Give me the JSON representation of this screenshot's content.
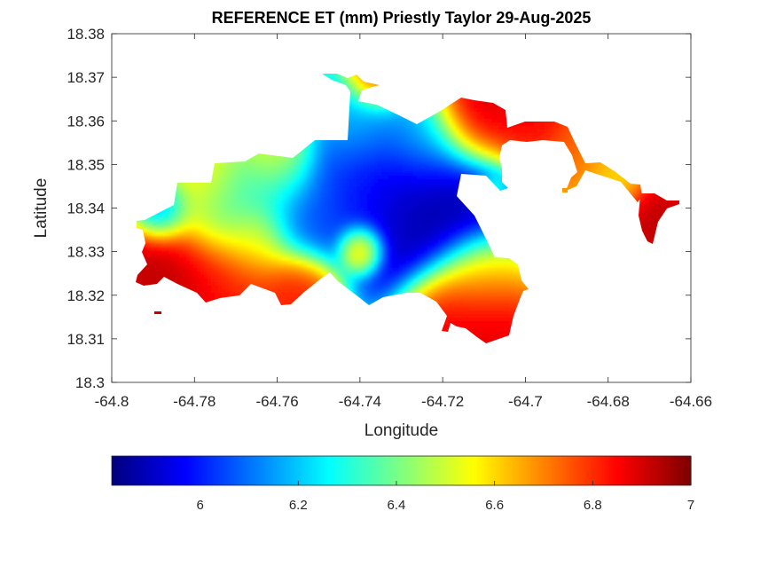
{
  "chart_data": {
    "type": "heatmap",
    "title": "REFERENCE ET (mm) Priestly Taylor 29-Aug-2025",
    "xlabel": "Longitude",
    "ylabel": "Latitude",
    "xlim": [
      -64.8,
      -64.66
    ],
    "ylim": [
      18.3,
      18.38
    ],
    "xticks": [
      -64.8,
      -64.78,
      -64.76,
      -64.74,
      -64.72,
      -64.7,
      -64.68,
      -64.66
    ],
    "yticks": [
      18.3,
      18.31,
      18.32,
      18.33,
      18.34,
      18.35,
      18.36,
      18.37,
      18.38
    ],
    "xtick_labels": [
      "-64.8",
      "-64.78",
      "-64.76",
      "-64.74",
      "-64.72",
      "-64.7",
      "-64.68",
      "-64.66"
    ],
    "ytick_labels": [
      "18.3",
      "18.31",
      "18.32",
      "18.33",
      "18.34",
      "18.35",
      "18.36",
      "18.37",
      "18.38"
    ],
    "grid": false,
    "colormap": "jet",
    "colorbar": {
      "orientation": "horizontal",
      "location": "below",
      "range": [
        5.82,
        7.0
      ],
      "ticks": [
        6,
        6.2,
        6.4,
        6.6,
        6.8,
        7
      ],
      "tick_labels": [
        "6",
        "6.2",
        "6.4",
        "6.6",
        "6.8",
        "7"
      ]
    },
    "field": {
      "background": 6.45,
      "hotspots": [
        {
          "lon": -64.7245,
          "lat": 18.3405,
          "value": 5.84,
          "radius": 0.011
        },
        {
          "lon": -64.7345,
          "lat": 18.35,
          "value": 5.92,
          "radius": 0.009
        },
        {
          "lon": -64.744,
          "lat": 18.344,
          "value": 6.05,
          "radius": 0.008
        },
        {
          "lon": -64.753,
          "lat": 18.3365,
          "value": 6.05,
          "radius": 0.006
        },
        {
          "lon": -64.788,
          "lat": 18.34,
          "value": 6.0,
          "radius": 0.004
        },
        {
          "lon": -64.772,
          "lat": 18.34,
          "value": 6.25,
          "radius": 0.007
        },
        {
          "lon": -64.74,
          "lat": 18.358,
          "value": 6.28,
          "radius": 0.006
        },
        {
          "lon": -64.76,
          "lat": 18.347,
          "value": 6.35,
          "radius": 0.006
        },
        {
          "lon": -64.726,
          "lat": 18.356,
          "value": 6.3,
          "radius": 0.006
        },
        {
          "lon": -64.74,
          "lat": 18.331,
          "value": 6.85,
          "radius": 0.003
        },
        {
          "lon": -64.765,
          "lat": 18.333,
          "value": 6.55,
          "radius": 0.005
        },
        {
          "lon": -64.778,
          "lat": 18.346,
          "value": 6.62,
          "radius": 0.006
        },
        {
          "lon": -64.76,
          "lat": 18.353,
          "value": 6.6,
          "radius": 0.005
        },
        {
          "lon": -64.785,
          "lat": 18.323,
          "value": 6.95,
          "radius": 0.01
        },
        {
          "lon": -64.77,
          "lat": 18.323,
          "value": 6.8,
          "radius": 0.007
        },
        {
          "lon": -64.755,
          "lat": 18.3225,
          "value": 6.85,
          "radius": 0.005
        },
        {
          "lon": -64.718,
          "lat": 18.316,
          "value": 6.92,
          "radius": 0.006
        },
        {
          "lon": -64.709,
          "lat": 18.314,
          "value": 6.92,
          "radius": 0.006
        },
        {
          "lon": -64.711,
          "lat": 18.323,
          "value": 6.65,
          "radius": 0.006
        },
        {
          "lon": -64.713,
          "lat": 18.361,
          "value": 6.97,
          "radius": 0.006
        },
        {
          "lon": -64.7,
          "lat": 18.361,
          "value": 6.88,
          "radius": 0.006
        },
        {
          "lon": -64.735,
          "lat": 18.369,
          "value": 6.88,
          "radius": 0.004
        },
        {
          "lon": -64.669,
          "lat": 18.337,
          "value": 6.95,
          "radius": 0.005
        },
        {
          "lon": -64.68,
          "lat": 18.346,
          "value": 6.6,
          "radius": 0.005
        },
        {
          "lon": -64.688,
          "lat": 18.351,
          "value": 6.75,
          "radius": 0.005
        },
        {
          "lon": -64.708,
          "lat": 18.344,
          "value": 6.35,
          "radius": 0.002
        }
      ]
    }
  }
}
